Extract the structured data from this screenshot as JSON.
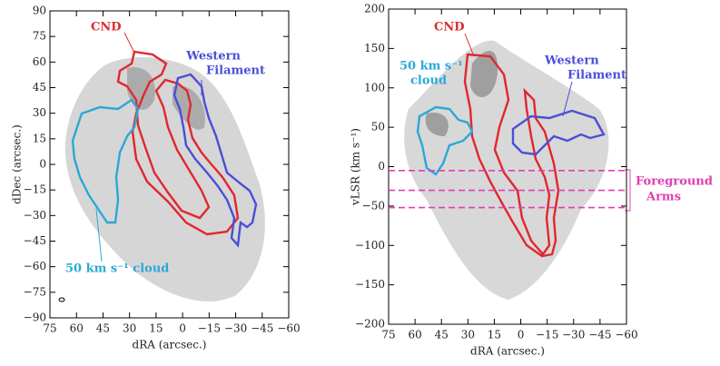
{
  "chart_data": [
    {
      "type": "contour-map",
      "xlabel": "dRA (arcsec.)",
      "ylabel": "dDec (arcsec.)",
      "xlim": [
        75,
        -60
      ],
      "ylim": [
        -90,
        90
      ],
      "xticks": [
        75,
        60,
        45,
        30,
        15,
        0,
        {
          "value": -15,
          "label": "−15"
        },
        {
          "value": -30,
          "label": "−30"
        },
        {
          "value": -45,
          "label": "−45"
        },
        {
          "value": -60,
          "label": "−60"
        }
      ],
      "yticks": [
        90,
        75,
        60,
        45,
        30,
        15,
        0,
        {
          "value": -15,
          "label": "−15"
        },
        {
          "value": -30,
          "label": "−30"
        },
        {
          "value": -45,
          "label": "−45"
        },
        {
          "value": -60,
          "label": "−60"
        },
        {
          "value": -75,
          "label": "−75"
        },
        {
          "value": -90,
          "label": "−90"
        }
      ],
      "annotations": [
        "CND",
        "Western",
        "Filament",
        "50 km s⁻¹ cloud"
      ]
    },
    {
      "type": "contour-map",
      "xlabel": "dRA (arcsec.)",
      "ylabel": "vLSR (km s⁻¹)",
      "xlim": [
        75,
        -60
      ],
      "ylim": [
        -200,
        200
      ],
      "xticks": [
        75,
        60,
        45,
        30,
        15,
        0,
        {
          "value": -15,
          "label": "−15"
        },
        {
          "value": -30,
          "label": "−30"
        },
        {
          "value": -45,
          "label": "−45"
        },
        {
          "value": -60,
          "label": "−60"
        }
      ],
      "yticks": [
        200,
        150,
        100,
        50,
        0,
        {
          "value": -50,
          "label": "−50"
        },
        {
          "value": -100,
          "label": "−100"
        },
        {
          "value": -150,
          "label": "−150"
        },
        {
          "value": -200,
          "label": "−200"
        }
      ],
      "hlines": [
        -5,
        -30,
        -52
      ],
      "annotations": [
        "CND",
        "50 km s⁻¹",
        "cloud",
        "Western",
        "Filament",
        "Foreground",
        "Arms"
      ]
    }
  ]
}
